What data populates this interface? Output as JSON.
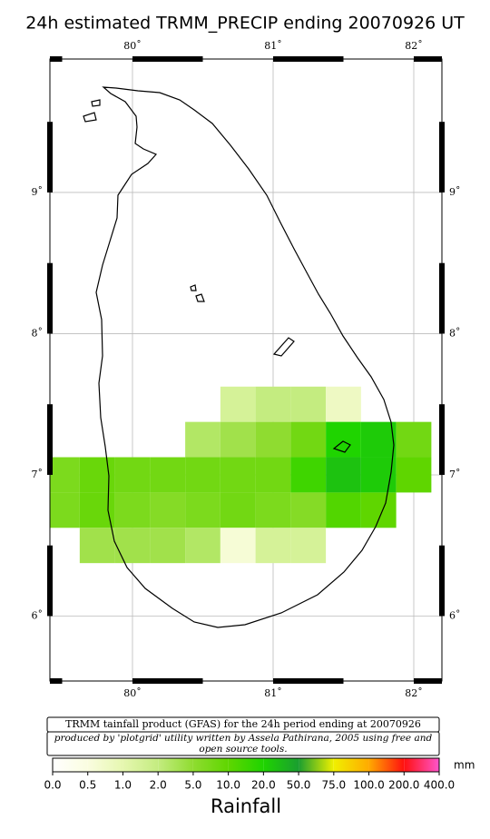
{
  "chart_data": {
    "type": "heatmap",
    "title": "24h estimated TRMM_PRECIP  ending 20070926 UT",
    "xlim": [
      79.413,
      82.2
    ],
    "ylim": [
      5.54,
      9.945
    ],
    "xticks": [
      {
        "value": 80,
        "label": "80˚"
      },
      {
        "value": 81,
        "label": "81˚"
      },
      {
        "value": 82,
        "label": "82˚"
      }
    ],
    "yticks": [
      {
        "value": 6,
        "label": "6˚"
      },
      {
        "value": 7,
        "label": "7˚"
      },
      {
        "value": 8,
        "label": "8˚"
      },
      {
        "value": 9,
        "label": "9˚"
      }
    ],
    "grid": true,
    "x": [
      79.375,
      79.625,
      79.875,
      80.125,
      80.375,
      80.625,
      80.875,
      81.125,
      81.375,
      81.625,
      81.875,
      82.125
    ],
    "y": [
      7.625,
      7.375,
      7.125,
      6.875,
      6.625,
      6.375
    ],
    "values": [
      [
        null,
        null,
        null,
        null,
        null,
        1.5,
        2,
        2,
        0.8,
        null,
        null
      ],
      [
        null,
        null,
        null,
        null,
        3,
        4,
        5,
        8,
        20,
        25,
        8
      ],
      [
        7,
        9,
        8,
        8,
        8,
        8,
        8,
        15,
        30,
        25,
        10
      ],
      [
        7,
        9,
        7,
        6,
        7,
        8,
        7,
        6,
        12,
        10,
        null
      ],
      [
        null,
        4,
        4,
        4,
        3,
        0.6,
        1.5,
        1.5,
        null,
        null,
        null
      ]
    ],
    "colorbar": {
      "ticks": [
        {
          "value": 0,
          "label": "0.0"
        },
        {
          "value": 0.5,
          "label": "0.5"
        },
        {
          "value": 1,
          "label": "1.0"
        },
        {
          "value": 2,
          "label": "2.0"
        },
        {
          "value": 5,
          "label": "5.0"
        },
        {
          "value": 10,
          "label": "10.0"
        },
        {
          "value": 20,
          "label": "20.0"
        },
        {
          "value": 50,
          "label": "50.0"
        },
        {
          "value": 75,
          "label": "75.0"
        },
        {
          "value": 100,
          "label": "100.0"
        },
        {
          "value": 200,
          "label": "200.0"
        },
        {
          "value": 400,
          "label": "400.0"
        }
      ],
      "colors": [
        "#ffffff",
        "#fafde0",
        "#e6f7b0",
        "#c4ec80",
        "#8fdc30",
        "#5fd600",
        "#1fd400",
        "#1a9e30",
        "#f0f000",
        "#ffaa00",
        "#ff1010",
        "#ff55cc"
      ],
      "unit": "mm",
      "label": "Rainfall"
    },
    "credits": [
      "TRMM tainfall product (GFAS) for the 24h period ending at 20070926",
      "produced by 'plotgrid' utility written by Assela Pathirana, 2005 using free and open source tools."
    ]
  }
}
